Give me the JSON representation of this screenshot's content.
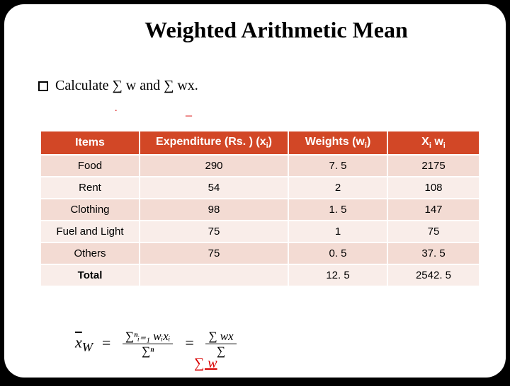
{
  "title": "Weighted Arithmetic Mean",
  "bullet_text": "Calculate ∑ w and ∑ wx.",
  "table": {
    "header_bg": "#d24726",
    "row_colors": [
      "#f3dbd3",
      "#f9ede9"
    ],
    "columns": {
      "items": "Items",
      "expenditure_plain": "Expenditure (Rs. ) (x",
      "expenditure_sub": "i",
      "expenditure_close": ")",
      "weights_plain": "Weights (w",
      "weights_sub": "i",
      "weights_close": ")",
      "product_x": "X",
      "product_xi": "i",
      "product_sp": " w",
      "product_wi": "i"
    },
    "rows": [
      {
        "item": "Food",
        "x": "290",
        "w": "7. 5",
        "xw": "2175"
      },
      {
        "item": "Rent",
        "x": "54",
        "w": "2",
        "xw": "108"
      },
      {
        "item": "Clothing",
        "x": "98",
        "w": "1. 5",
        "xw": "147"
      },
      {
        "item": "Fuel and Light",
        "x": "75",
        "w": "1",
        "xw": "75"
      },
      {
        "item": "Others",
        "x": "75",
        "w": "0. 5",
        "xw": "37. 5"
      }
    ],
    "total": {
      "label": "Total",
      "x": "",
      "w": "12. 5",
      "xw": "2542. 5"
    }
  },
  "formula": {
    "lhs": "x̄",
    "lhs_sub": "W",
    "num1": "∑ⁿᵢ₌₁ wᵢxᵢ",
    "den1": "∑ⁿ",
    "num2": "∑ wx",
    "den2": "∑",
    "scratch": "∑ w"
  }
}
